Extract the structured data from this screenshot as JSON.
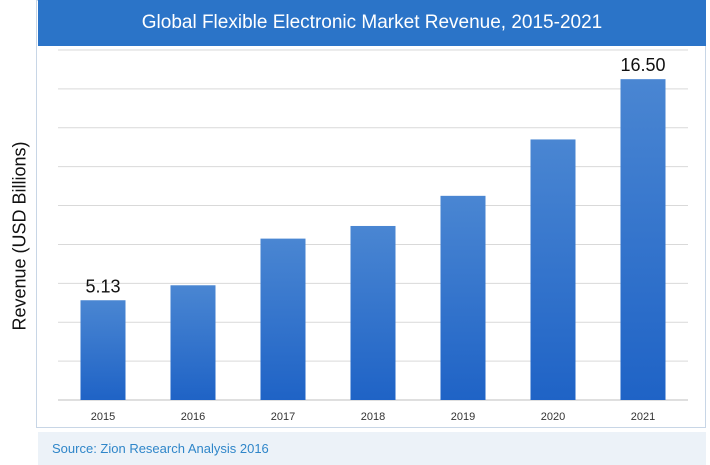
{
  "chart_data": {
    "type": "bar",
    "title": "Global Flexible Electronic Market Revenue, 2015-2021",
    "xlabel": "",
    "ylabel": "Revenue (USD Billions)",
    "categories": [
      "2015",
      "2016",
      "2017",
      "2018",
      "2019",
      "2020",
      "2021"
    ],
    "values": [
      5.13,
      5.9,
      8.3,
      8.95,
      10.5,
      13.4,
      16.5
    ],
    "data_labels": {
      "0": "5.13",
      "6": "16.50"
    },
    "ylim": [
      0,
      18
    ],
    "grid": true,
    "bar_color_top": "#4a86d2",
    "bar_color_bottom": "#1f63c6"
  },
  "footer": {
    "source": "Source:  Zion Research Analysis 2016"
  }
}
